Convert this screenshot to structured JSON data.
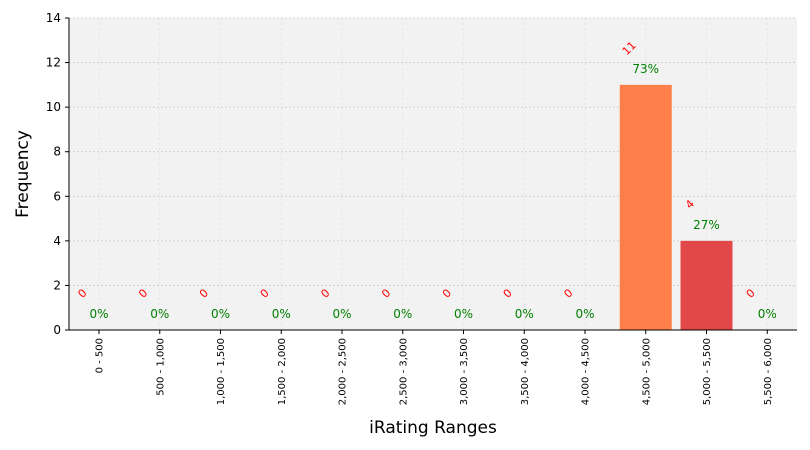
{
  "chart_data": {
    "type": "bar",
    "xlabel": "iRating Ranges",
    "ylabel": "Frequency",
    "ylim": [
      0,
      14
    ],
    "yticks": [
      0,
      2,
      4,
      6,
      8,
      10,
      12,
      14
    ],
    "grid": true,
    "categories": [
      "0 - 500",
      "500 - 1,000",
      "1,000 - 1,500",
      "1,500 - 2,000",
      "2,000 - 2,500",
      "2,500 - 3,000",
      "3,000 - 3,500",
      "3,500 - 4,000",
      "4,000 - 4,500",
      "4,500 - 5,000",
      "5,000 - 5,500",
      "5,500 - 6,000"
    ],
    "values": [
      0,
      0,
      0,
      0,
      0,
      0,
      0,
      0,
      0,
      11,
      4,
      0
    ],
    "count_labels": [
      "0",
      "0",
      "0",
      "0",
      "0",
      "0",
      "0",
      "0",
      "0",
      "11",
      "4",
      "0"
    ],
    "percent_labels": [
      "0%",
      "0%",
      "0%",
      "0%",
      "0%",
      "0%",
      "0%",
      "0%",
      "0%",
      "73%",
      "27%",
      "0%"
    ],
    "bar_colors": [
      "#ff7f50",
      "#ff7f50",
      "#ff7f50",
      "#ff7f50",
      "#ff7f50",
      "#ff7f50",
      "#ff7f50",
      "#ff7f50",
      "#ff7f50",
      "#ff7f4a",
      "#e34848",
      "#ff7f50"
    ],
    "count_label_color": "#ff0000",
    "percent_label_color": "#008000",
    "plot_background": "#f2f2f2"
  }
}
